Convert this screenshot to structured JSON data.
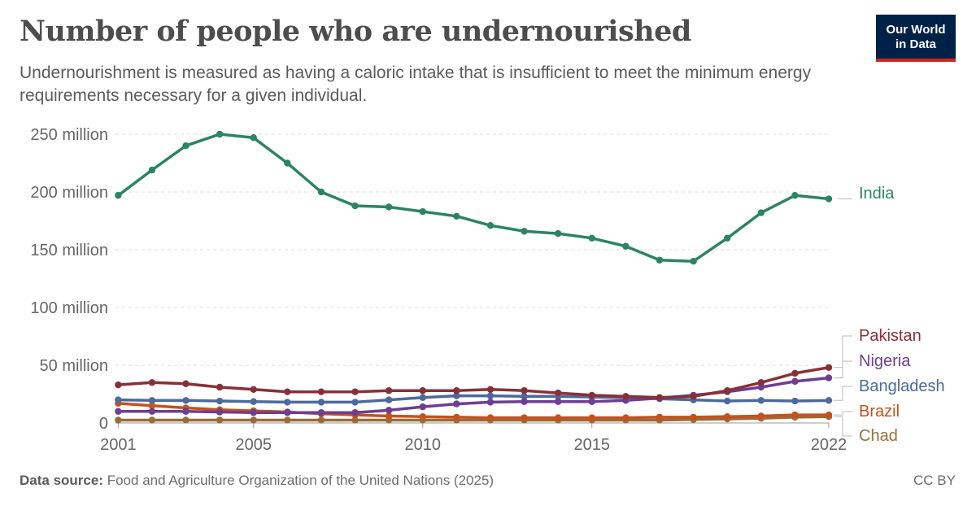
{
  "title": "Number of people who are undernourished",
  "subtitle": "Undernourishment is measured as having a caloric intake that is insufficient to meet the minimum energy requirements necessary for a given individual.",
  "logo": {
    "line1": "Our World",
    "line2": "in Data",
    "bg": "#002147",
    "accent": "#ce261e"
  },
  "footer": {
    "source_label": "Data source:",
    "source_text": "Food and Agriculture Organization of the United Nations (2025)",
    "license": "CC BY"
  },
  "chart_data": {
    "type": "line",
    "x_ticks": [
      2001,
      2005,
      2010,
      2015,
      2022
    ],
    "x_tick_labels": [
      "2001",
      "2005",
      "2010",
      "2015",
      "2022"
    ],
    "y_ticks": [
      0,
      50,
      100,
      150,
      200,
      250
    ],
    "y_tick_labels": [
      "0",
      "50 million",
      "100 million",
      "150 million",
      "200 million",
      "250 million"
    ],
    "xlim": [
      2001,
      2022
    ],
    "ylim": [
      0,
      250
    ],
    "y_unit": "million",
    "grid": "horizontal dashed",
    "legend": "right (end-of-line labels)",
    "x": [
      2001,
      2002,
      2003,
      2004,
      2005,
      2006,
      2007,
      2008,
      2009,
      2010,
      2011,
      2012,
      2013,
      2014,
      2015,
      2016,
      2017,
      2018,
      2019,
      2020,
      2021,
      2022
    ],
    "series": [
      {
        "name": "India",
        "color": "#2c8465",
        "values": [
          197,
          219,
          240,
          250,
          247,
          225,
          200,
          188,
          187,
          183,
          179,
          171,
          166,
          164,
          160,
          153,
          141,
          140,
          160,
          182,
          197,
          194
        ]
      },
      {
        "name": "Pakistan",
        "color": "#883039",
        "values": [
          33,
          35,
          34,
          31,
          29,
          27,
          27,
          27,
          28,
          28,
          28,
          29,
          28,
          26,
          24,
          23,
          22,
          23,
          28,
          35,
          43,
          48
        ]
      },
      {
        "name": "Nigeria",
        "color": "#6d3e91",
        "values": [
          10,
          10,
          10,
          9.5,
          9,
          9,
          9,
          9,
          11,
          14,
          16.5,
          18,
          18.5,
          18.5,
          18.5,
          19.5,
          21.5,
          24,
          27,
          31,
          36,
          39
        ]
      },
      {
        "name": "Bangladesh",
        "color": "#4c6a9c",
        "values": [
          20,
          19.5,
          19.5,
          19,
          18.5,
          18,
          18,
          18,
          20,
          22,
          23.5,
          23.5,
          23,
          23,
          22.5,
          22,
          21,
          20,
          19,
          19.5,
          19,
          19.5
        ]
      },
      {
        "name": "Brazil",
        "color": "#c4521e",
        "values": [
          17,
          15,
          13,
          11.5,
          10.5,
          9.5,
          8,
          7,
          6,
          5.5,
          5,
          4.5,
          4.5,
          4.5,
          4.5,
          4.5,
          5,
          5,
          5.5,
          6,
          7,
          7
        ]
      },
      {
        "name": "Chad",
        "color": "#996d39",
        "values": [
          2.5,
          2.5,
          2.5,
          2.5,
          2.5,
          2.5,
          2.5,
          2.5,
          2.5,
          2.5,
          2.5,
          2.5,
          2.5,
          2.5,
          2.5,
          2.5,
          2.5,
          3,
          3.5,
          4,
          5,
          5.5
        ]
      }
    ]
  }
}
